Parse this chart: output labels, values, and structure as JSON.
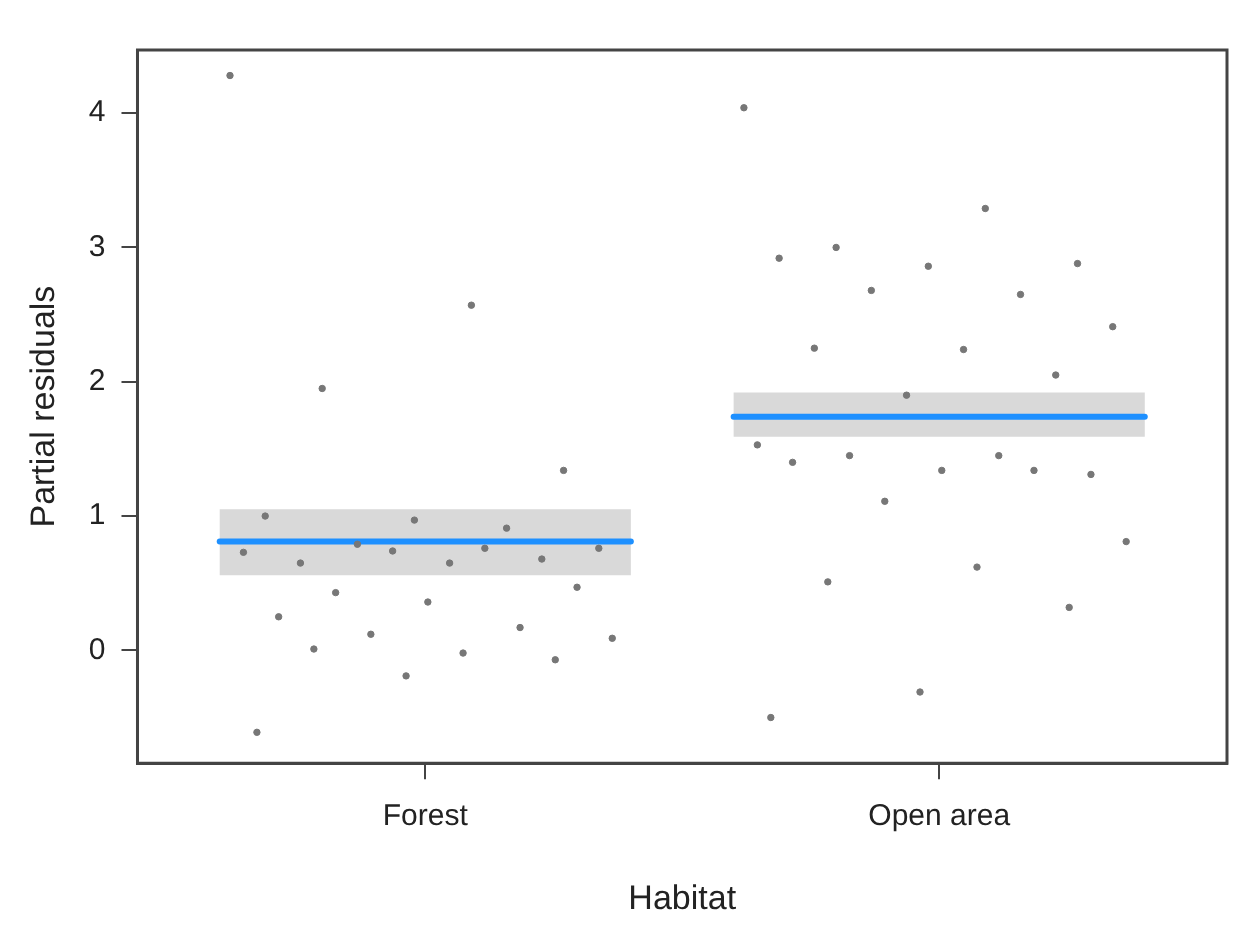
{
  "chart_data": {
    "type": "box",
    "xlabel": "Habitat",
    "ylabel": "Partial residuals",
    "categories": [
      "Forest",
      "Open area"
    ],
    "ylim": [
      -0.84,
      4.47
    ],
    "yticks": [
      0,
      1,
      2,
      3,
      4
    ],
    "grid": false,
    "legend": false,
    "series": [
      {
        "color": "#d9d9d9",
        "boxes": [
          {
            "low": 0.56,
            "q1": 0.56,
            "median": 0.81,
            "q3": 1.05,
            "high": 1.05
          },
          {
            "low": 1.59,
            "q1": 1.59,
            "median": 1.74,
            "q3": 1.92,
            "high": 1.92
          }
        ]
      },
      {
        "type": "scatter",
        "color": "#777777",
        "marker": "circle",
        "x": [
          "Forest",
          "Forest",
          "Forest",
          "Forest",
          "Forest",
          "Forest",
          "Forest",
          "Forest",
          "Forest",
          "Forest",
          "Forest",
          "Forest",
          "Forest",
          "Forest",
          "Forest",
          "Forest",
          "Forest",
          "Forest",
          "Forest",
          "Forest",
          "Forest",
          "Forest",
          "Forest",
          "Forest",
          "Forest",
          "Forest",
          "Forest"
        ],
        "values": [
          4.28,
          2.57,
          1.95,
          1.34,
          0.97,
          1.0,
          0.91,
          0.79,
          0.76,
          0.65,
          0.65,
          0.68,
          0.74,
          0.73,
          0.76,
          0.43,
          0.47,
          0.36,
          0.25,
          0.17,
          0.12,
          0.09,
          -0.02,
          0.01,
          -0.07,
          -0.19,
          -0.61
        ]
      },
      {
        "type": "scatter",
        "color": "#777777",
        "marker": "circle",
        "x": [
          "Open area",
          "Open area",
          "Open area",
          "Open area",
          "Open area",
          "Open area",
          "Open area",
          "Open area",
          "Open area",
          "Open area",
          "Open area",
          "Open area",
          "Open area",
          "Open area",
          "Open area",
          "Open area",
          "Open area",
          "Open area",
          "Open area",
          "Open area",
          "Open area",
          "Open area",
          "Open area",
          "Open area",
          "Open area",
          "Open area",
          "Open area"
        ],
        "values": [
          4.04,
          3.29,
          3.0,
          2.88,
          2.86,
          2.92,
          2.65,
          2.68,
          2.41,
          2.24,
          2.25,
          2.05,
          1.9,
          1.53,
          1.45,
          1.45,
          1.31,
          1.34,
          1.4,
          1.34,
          1.11,
          0.81,
          0.62,
          0.51,
          0.32,
          -0.31,
          -0.5
        ]
      }
    ]
  }
}
